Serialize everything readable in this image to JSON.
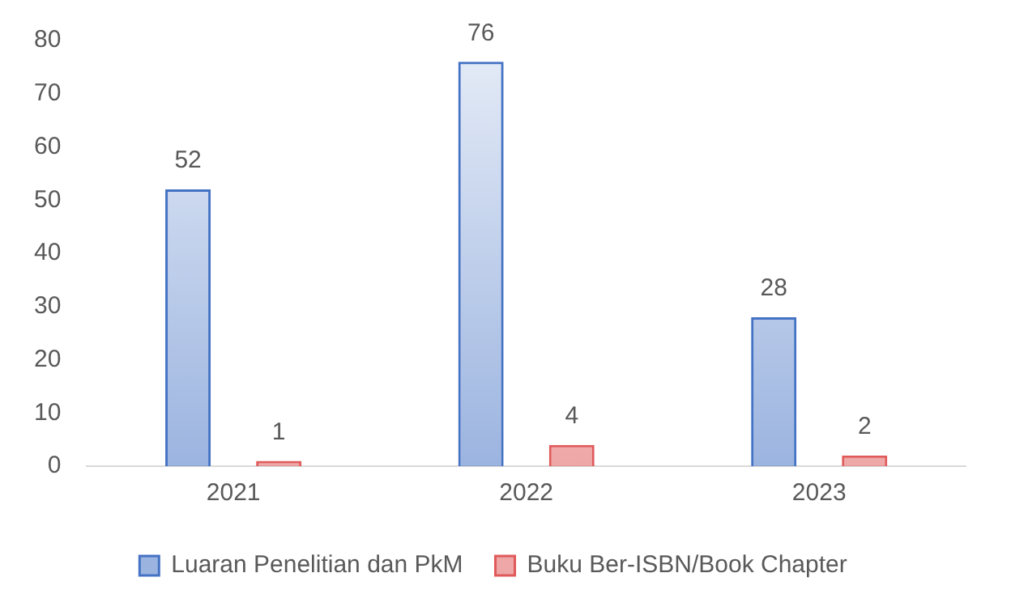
{
  "chart_data": {
    "type": "bar",
    "categories": [
      "2021",
      "2022",
      "2023"
    ],
    "series": [
      {
        "name": "Luaran Penelitian dan PkM",
        "color": "#4472c4",
        "values": [
          52,
          76,
          28
        ]
      },
      {
        "name": "Buku Ber-ISBN/Book Chapter",
        "color": "#e05a5a",
        "values": [
          1,
          4,
          2
        ]
      }
    ],
    "ylim": [
      0,
      80
    ],
    "yticks": [
      0,
      10,
      20,
      30,
      40,
      50,
      60,
      70,
      80
    ],
    "grid": false,
    "legend": "bottom",
    "data_labels": true
  }
}
